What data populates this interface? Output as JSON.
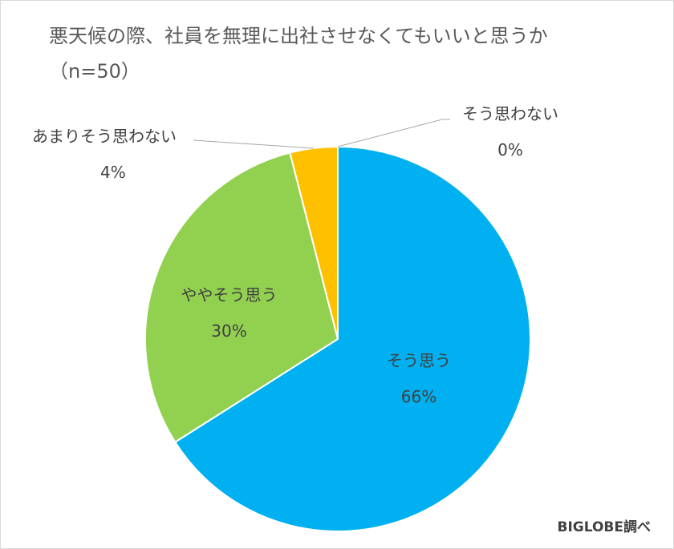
{
  "chart_data": {
    "type": "pie",
    "title": "悪天候の際、社員を無理に出社させなくてもいいと思うか",
    "subtitle": "（n=50）",
    "start_angle": "12 o'clock, clockwise",
    "slices": [
      {
        "label": "そう思う",
        "value": 66,
        "value_label": "66%",
        "color": "#00b0f0"
      },
      {
        "label": "ややそう思う",
        "value": 30,
        "value_label": "30%",
        "color": "#92d050"
      },
      {
        "label": "あまりそう思わない",
        "value": 4,
        "value_label": "4%",
        "color": "#ffc000"
      },
      {
        "label": "そう思わない",
        "value": 0,
        "value_label": "0%",
        "color": "#a6a6a6"
      }
    ]
  },
  "credit": "BIGLOBE調べ"
}
